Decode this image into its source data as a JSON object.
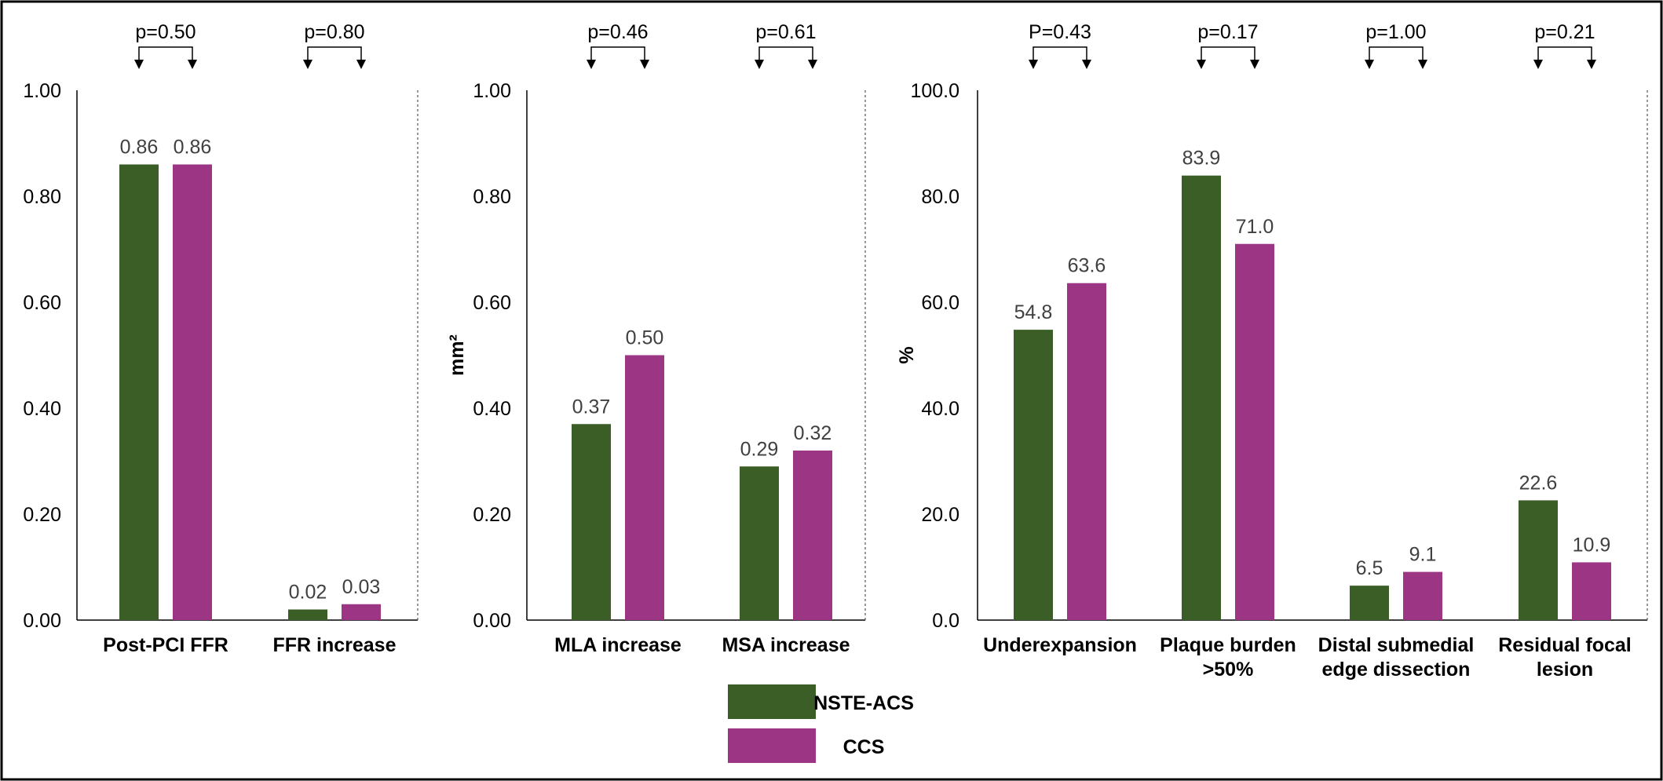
{
  "legend": [
    {
      "label": "NSTE-ACS",
      "color": "#3a5e26"
    },
    {
      "label": "CCS",
      "color": "#9c3684"
    }
  ],
  "chart_data": [
    {
      "type": "bar",
      "ylabel": "",
      "ylim": [
        0,
        1
      ],
      "ticks": [
        "0.00",
        "0.20",
        "0.40",
        "0.60",
        "0.80",
        "1.00"
      ],
      "categories": [
        [
          "Post-PCI FFR"
        ],
        [
          "FFR increase"
        ]
      ],
      "series": [
        {
          "name": "NSTE-ACS",
          "values": [
            0.86,
            0.02
          ],
          "labels": [
            "0.86",
            "0.02"
          ]
        },
        {
          "name": "CCS",
          "values": [
            0.86,
            0.03
          ],
          "labels": [
            "0.86",
            "0.03"
          ]
        }
      ],
      "p_values": [
        "p=0.50",
        "p=0.80"
      ]
    },
    {
      "type": "bar",
      "ylabel": "mm²",
      "ylim": [
        0,
        1
      ],
      "ticks": [
        "0.00",
        "0.20",
        "0.40",
        "0.60",
        "0.80",
        "1.00"
      ],
      "categories": [
        [
          "MLA increase"
        ],
        [
          "MSA increase"
        ]
      ],
      "series": [
        {
          "name": "NSTE-ACS",
          "values": [
            0.37,
            0.29
          ],
          "labels": [
            "0.37",
            "0.29"
          ]
        },
        {
          "name": "CCS",
          "values": [
            0.5,
            0.32
          ],
          "labels": [
            "0.50",
            "0.32"
          ]
        }
      ],
      "p_values": [
        "p=0.46",
        "p=0.61"
      ]
    },
    {
      "type": "bar",
      "ylabel": "%",
      "ylim": [
        0,
        100
      ],
      "ticks": [
        "0.0",
        "20.0",
        "40.0",
        "60.0",
        "80.0",
        "100.0"
      ],
      "categories": [
        [
          "Underexpansion"
        ],
        [
          "Plaque burden",
          ">50%"
        ],
        [
          "Distal submedial",
          "edge dissection"
        ],
        [
          "Residual focal",
          "lesion"
        ]
      ],
      "series": [
        {
          "name": "NSTE-ACS",
          "values": [
            54.8,
            83.9,
            6.5,
            22.6
          ],
          "labels": [
            "54.8",
            "83.9",
            "6.5",
            "22.6"
          ]
        },
        {
          "name": "CCS",
          "values": [
            63.6,
            71.0,
            9.1,
            10.9
          ],
          "labels": [
            "63.6",
            "71.0",
            "9.1",
            "10.9"
          ]
        }
      ],
      "p_values": [
        "P=0.43",
        "p=0.17",
        "p=1.00",
        "p=0.21"
      ]
    }
  ]
}
